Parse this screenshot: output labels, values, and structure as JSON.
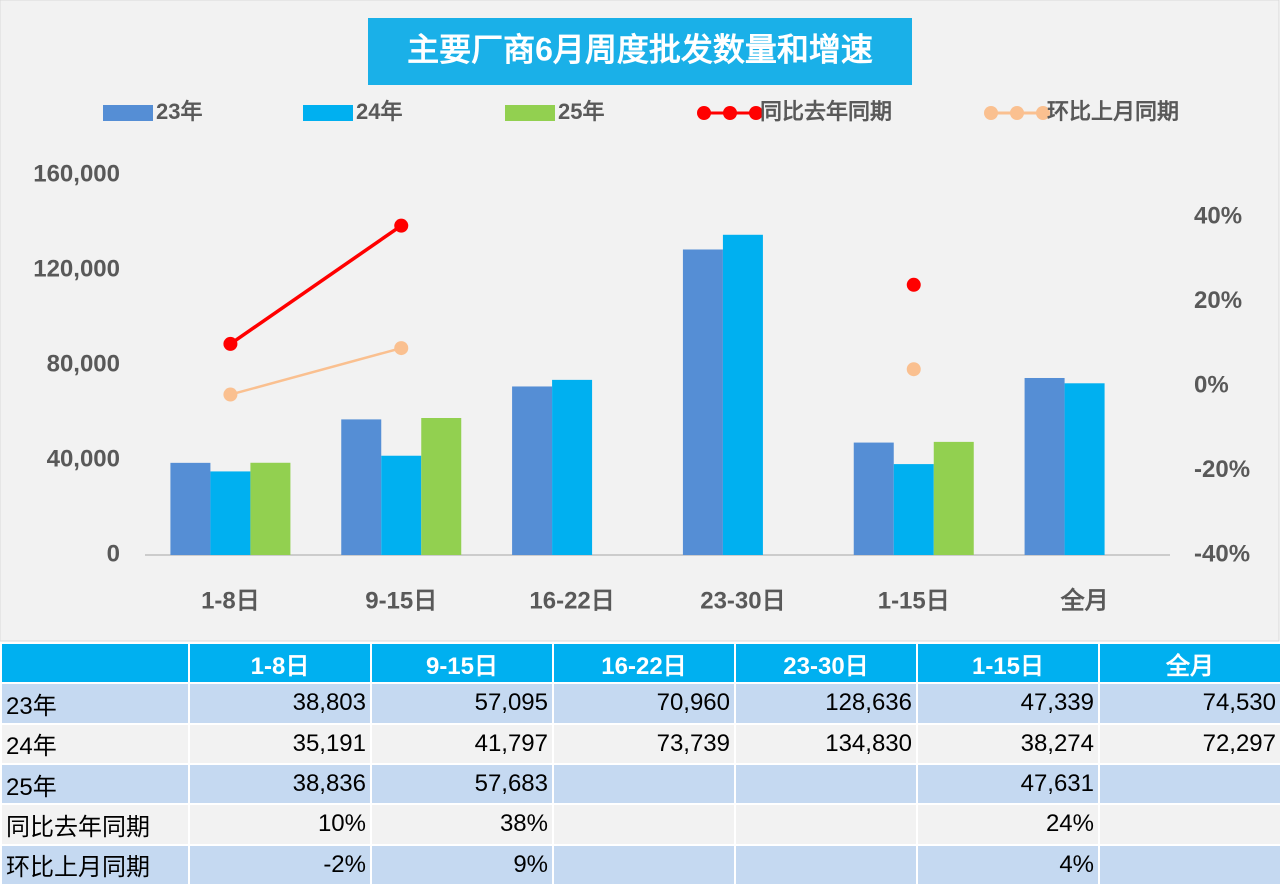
{
  "chart_data": {
    "type": "bar",
    "title": "主要厂商6月周度批发数量和增速",
    "categories": [
      "1-8日",
      "9-15日",
      "16-22日",
      "23-30日",
      "1-15日",
      "全月"
    ],
    "series": [
      {
        "name": "23年",
        "color": "#558ed5",
        "values": [
          38803,
          57095,
          70960,
          128636,
          47339,
          74530
        ]
      },
      {
        "name": "24年",
        "color": "#00b0f0",
        "values": [
          35191,
          41797,
          73739,
          134830,
          38274,
          72297
        ]
      },
      {
        "name": "25年",
        "color": "#92d050",
        "values": [
          38836,
          57683,
          null,
          null,
          47631,
          null
        ]
      },
      {
        "name": "同比去年同期",
        "type": "line",
        "axis": "y2",
        "color": "#ff0000",
        "values": [
          10,
          38,
          null,
          null,
          24,
          null
        ]
      },
      {
        "name": "环比上月同期",
        "type": "line",
        "axis": "y2",
        "color": "#fac090",
        "values": [
          -2,
          9,
          null,
          null,
          4,
          null
        ]
      }
    ],
    "ylim": [
      0,
      160000
    ],
    "yticks": [
      0,
      {
        "value": 40000,
        "label": "40,000"
      },
      {
        "value": 80000,
        "label": "80,000"
      },
      {
        "value": 120000,
        "label": "120,000"
      },
      {
        "value": 160000,
        "label": "160,000"
      }
    ],
    "y2lim": [
      -40,
      50
    ],
    "y2ticks": [
      {
        "value": -40,
        "label": "-40%"
      },
      {
        "value": -20,
        "label": "-20%"
      },
      {
        "value": 0,
        "label": "0%"
      },
      {
        "value": 20,
        "label": "20%"
      },
      {
        "value": 40,
        "label": "40%"
      }
    ],
    "grid": false,
    "legend": "top"
  },
  "table": {
    "columns": [
      "1-8日",
      "9-15日",
      "16-22日",
      "23-30日",
      "1-15日",
      "全月"
    ],
    "rows": [
      {
        "label": "23年",
        "cells": [
          "38,803",
          "57,095",
          "70,960",
          "128,636",
          "47,339",
          "74,530"
        ]
      },
      {
        "label": "24年",
        "cells": [
          "35,191",
          "41,797",
          "73,739",
          "134,830",
          "38,274",
          "72,297"
        ]
      },
      {
        "label": "25年",
        "cells": [
          "38,836",
          "57,683",
          null,
          null,
          "47,631",
          null
        ]
      },
      {
        "label": "同比去年同期",
        "cells": [
          "10%",
          "38%",
          null,
          null,
          "24%",
          null
        ]
      },
      {
        "label": "环比上月同期",
        "cells": [
          "-2%",
          "9%",
          null,
          null,
          "4%",
          null
        ]
      }
    ]
  }
}
